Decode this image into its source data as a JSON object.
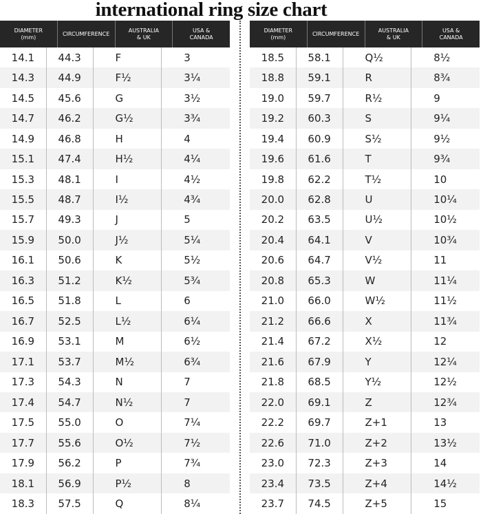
{
  "title": "international ring size chart",
  "left_table": {
    "headers": [
      [
        "DIAMETER",
        "(mm)"
      ],
      [
        "CIRCUMFERENCE"
      ],
      [
        "AUSTRALIA",
        "& UK"
      ],
      [
        "USA &",
        "CANADA"
      ]
    ],
    "rows": [
      [
        "14.1",
        "44.3",
        "F",
        "3"
      ],
      [
        "14.3",
        "44.9",
        "F½",
        "3¼"
      ],
      [
        "14.5",
        "45.6",
        "G",
        "3½"
      ],
      [
        "14.7",
        "46.2",
        "G½",
        "3¾"
      ],
      [
        "14.9",
        "46.8",
        "H",
        "4"
      ],
      [
        "15.1",
        "47.4",
        "H½",
        "4¼"
      ],
      [
        "15.3",
        "48.1",
        "I",
        "4½"
      ],
      [
        "15.5",
        "48.7",
        "I½",
        "4¾"
      ],
      [
        "15.7",
        "49.3",
        "J",
        "5"
      ],
      [
        "15.9",
        "50.0",
        "J½",
        "5¼"
      ],
      [
        "16.1",
        "50.6",
        "K",
        "5½"
      ],
      [
        "16.3",
        "51.2",
        "K½",
        "5¾"
      ],
      [
        "16.5",
        "51.8",
        "L",
        "6"
      ],
      [
        "16.7",
        "52.5",
        "L½",
        "6¼"
      ],
      [
        "16.9",
        "53.1",
        "M",
        "6½"
      ],
      [
        "17.1",
        "53.7",
        "M½",
        "6¾"
      ],
      [
        "17.3",
        "54.3",
        "N",
        "7"
      ],
      [
        "17.4",
        "54.7",
        "N½",
        "7"
      ],
      [
        "17.5",
        "55.0",
        "O",
        "7¼"
      ],
      [
        "17.7",
        "55.6",
        "O½",
        "7½"
      ],
      [
        "17.9",
        "56.2",
        "P",
        "7¾"
      ],
      [
        "18.1",
        "56.9",
        "P½",
        "8"
      ],
      [
        "18.3",
        "57.5",
        "Q",
        "8¼"
      ]
    ]
  },
  "right_table": {
    "headers": [
      [
        "DIAMETER",
        "(mm)"
      ],
      [
        "CIRCUMFERENCE"
      ],
      [
        "AUSTRALIA",
        "& UK"
      ],
      [
        "USA &",
        "CANADA"
      ]
    ],
    "rows": [
      [
        "18.5",
        "58.1",
        "Q½",
        "8½"
      ],
      [
        "18.8",
        "59.1",
        "R",
        "8¾"
      ],
      [
        "19.0",
        "59.7",
        "R½",
        "9"
      ],
      [
        "19.2",
        "60.3",
        "S",
        "9¼"
      ],
      [
        "19.4",
        "60.9",
        "S½",
        "9½"
      ],
      [
        "19.6",
        "61.6",
        "T",
        "9¾"
      ],
      [
        "19.8",
        "62.2",
        "T½",
        "10"
      ],
      [
        "20.0",
        "62.8",
        "U",
        "10¼"
      ],
      [
        "20.2",
        "63.5",
        "U½",
        "10½"
      ],
      [
        "20.4",
        "64.1",
        "V",
        "10¾"
      ],
      [
        "20.6",
        "64.7",
        "V½",
        "11"
      ],
      [
        "20.8",
        "65.3",
        "W",
        "11¼"
      ],
      [
        "21.0",
        "66.0",
        "W½",
        "11½"
      ],
      [
        "21.2",
        "66.6",
        "X",
        "11¾"
      ],
      [
        "21.4",
        "67.2",
        "X½",
        "12"
      ],
      [
        "21.6",
        "67.9",
        "Y",
        "12¼"
      ],
      [
        "21.8",
        "68.5",
        "Y½",
        "12½"
      ],
      [
        "22.0",
        "69.1",
        "Z",
        "12¾"
      ],
      [
        "22.2",
        "69.7",
        "Z+1",
        "13"
      ],
      [
        "22.6",
        "71.0",
        "Z+2",
        "13½"
      ],
      [
        "23.0",
        "72.3",
        "Z+3",
        "14"
      ],
      [
        "23.4",
        "73.5",
        "Z+4",
        "14½"
      ],
      [
        "23.7",
        "74.5",
        "Z+5",
        "15"
      ]
    ]
  }
}
